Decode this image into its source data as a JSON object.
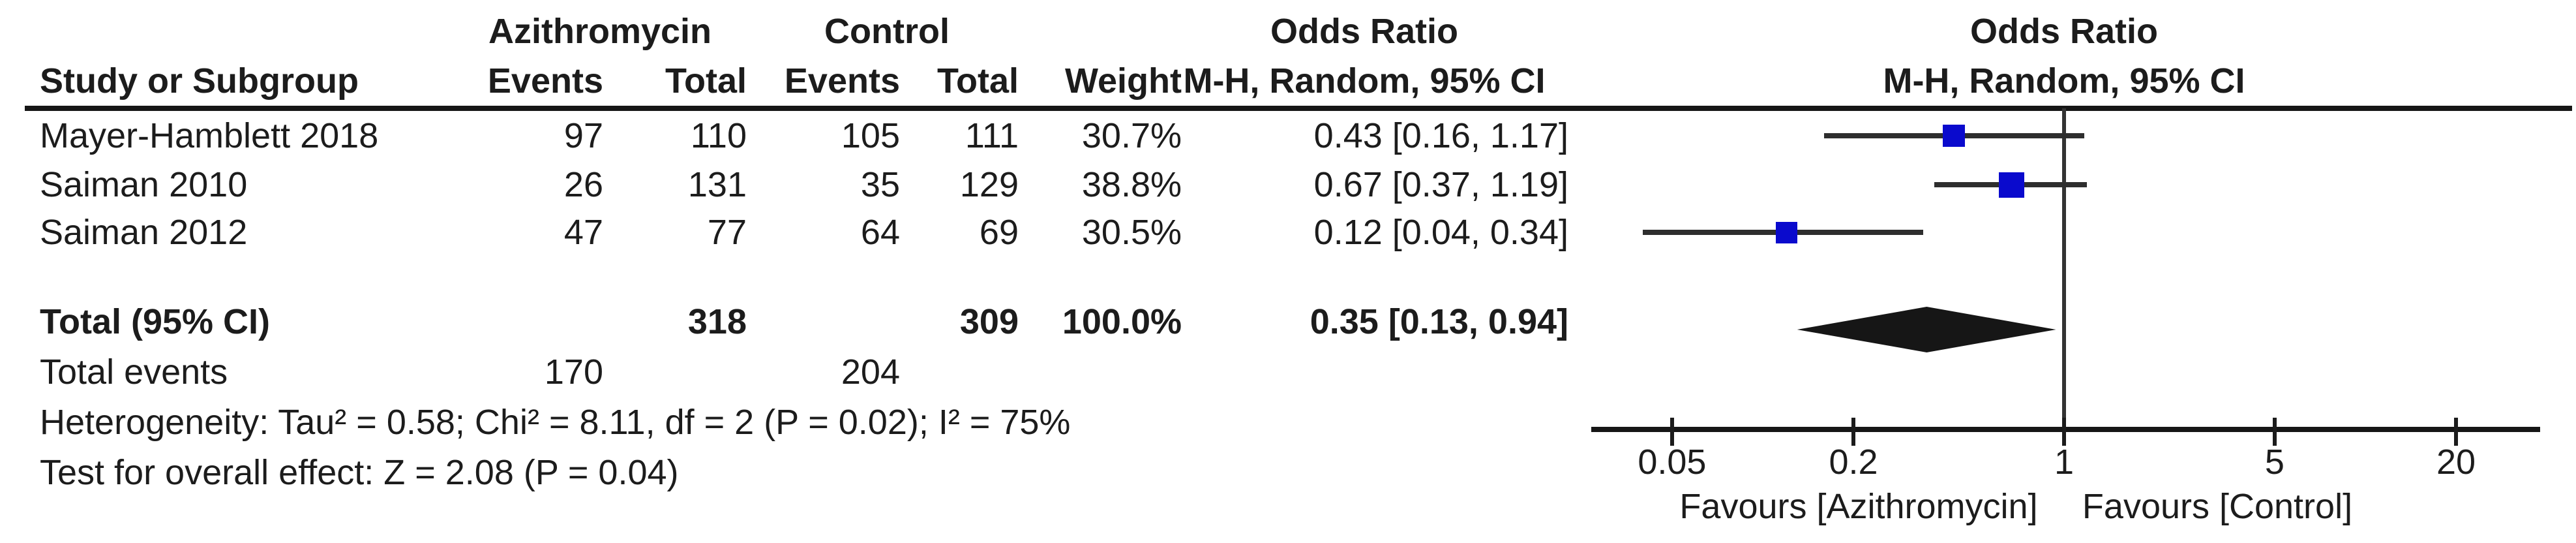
{
  "chart_data": {
    "type": "forest",
    "effect_measure": "Odds Ratio",
    "method": "M-H, Random, 95% CI",
    "headers": {
      "group1": "Azithromycin",
      "group2": "Control",
      "study": "Study or Subgroup",
      "events": "Events",
      "total": "Total",
      "weight": "Weight",
      "or_col_title": "Odds Ratio",
      "or_col_sub": "M-H, Random, 95% CI",
      "plot_col_title": "Odds Ratio",
      "plot_col_sub": "M-H, Random, 95% CI"
    },
    "studies": [
      {
        "label": "Mayer-Hamblett 2018",
        "events_tx": "97",
        "total_tx": "110",
        "events_ctrl": "105",
        "total_ctrl": "111",
        "weight": "30.7%",
        "or": 0.43,
        "ci_low": 0.16,
        "ci_high": 1.17,
        "or_text": "0.43 [0.16, 1.17]"
      },
      {
        "label": "Saiman 2010",
        "events_tx": "26",
        "total_tx": "131",
        "events_ctrl": "35",
        "total_ctrl": "129",
        "weight": "38.8%",
        "or": 0.67,
        "ci_low": 0.37,
        "ci_high": 1.19,
        "or_text": "0.67 [0.37, 1.19]"
      },
      {
        "label": "Saiman 2012",
        "events_tx": "47",
        "total_tx": "77",
        "events_ctrl": "64",
        "total_ctrl": "69",
        "weight": "30.5%",
        "or": 0.12,
        "ci_low": 0.04,
        "ci_high": 0.34,
        "or_text": "0.12 [0.04, 0.34]"
      }
    ],
    "total": {
      "label": "Total (95% CI)",
      "total_tx": "318",
      "total_ctrl": "309",
      "weight": "100.0%",
      "or": 0.35,
      "ci_low": 0.13,
      "ci_high": 0.94,
      "or_text": "0.35 [0.13, 0.94]"
    },
    "total_events": {
      "label": "Total events",
      "tx": "170",
      "ctrl": "204"
    },
    "heterogeneity": "Heterogeneity: Tau² = 0.58; Chi² = 8.11, df = 2 (P = 0.02); I² = 75%",
    "overall_effect": "Test for overall effect: Z = 2.08 (P = 0.04)",
    "axis": {
      "scale": "log",
      "ticks": [
        0.05,
        0.2,
        1,
        5,
        20
      ],
      "tick_labels": [
        "0.05",
        "0.2",
        "1",
        "5",
        "20"
      ],
      "line_value": 1
    },
    "favours_left": "Favours [Azithromycin]",
    "favours_right": "Favours [Control]",
    "colors": {
      "marker": "#0a0acd",
      "line": "#2e2e2e",
      "diamond": "#161616",
      "text": "#1c1c1c"
    }
  }
}
